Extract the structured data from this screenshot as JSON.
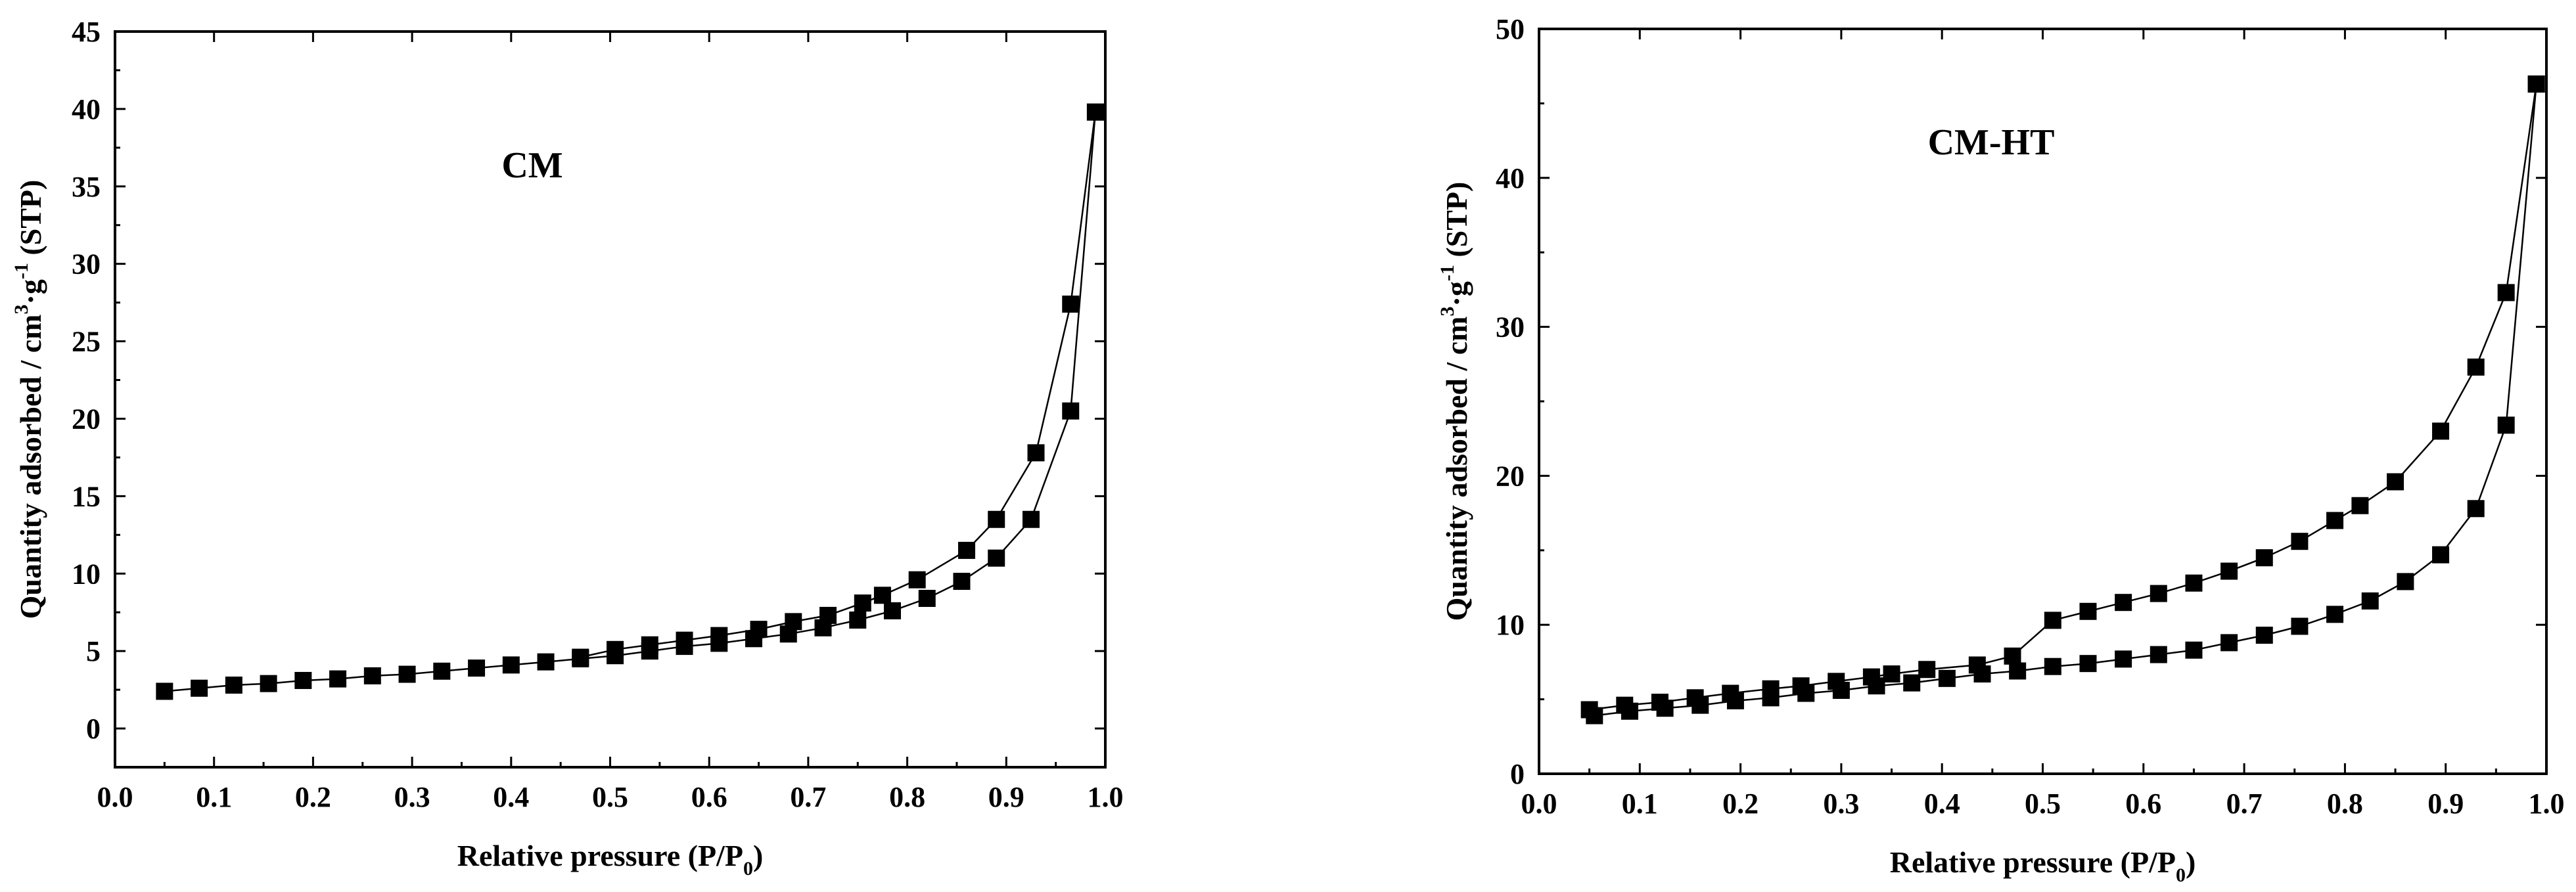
{
  "chart_data": [
    {
      "type": "line",
      "panel_label": "CM",
      "xlabel": "Relative pressure (P/P",
      "xlabel_sub": "0",
      "xlabel_suffix": ")",
      "ylabel_part1": "Quantity adsorbed / cm",
      "ylabel_sup1": "3",
      "ylabel_part2": "·g",
      "ylabel_sup2": "-1",
      "ylabel_part3": " (STP)",
      "xlim": [
        0.0,
        1.0
      ],
      "ylim": [
        -2.5,
        45
      ],
      "xticks": [
        0.0,
        0.1,
        0.2,
        0.3,
        0.4,
        0.5,
        0.6,
        0.7,
        0.8,
        0.9,
        1.0
      ],
      "xtick_labels": [
        "0.0",
        "0.1",
        "0.2",
        "0.3",
        "0.4",
        "0.5",
        "0.6",
        "0.7",
        "0.8",
        "0.9",
        "1.0"
      ],
      "yticks": [
        0,
        5,
        10,
        15,
        20,
        25,
        30,
        35,
        40,
        45
      ],
      "ytick_labels": [
        "0",
        "5",
        "10",
        "15",
        "20",
        "25",
        "30",
        "35",
        "40",
        "45"
      ],
      "marker": "square",
      "series": [
        {
          "x": [
            0.05,
            0.085,
            0.12,
            0.155,
            0.19,
            0.225,
            0.26,
            0.295,
            0.33,
            0.365,
            0.4,
            0.435,
            0.47,
            0.505,
            0.54,
            0.575,
            0.61,
            0.645,
            0.68,
            0.715,
            0.75,
            0.785,
            0.82,
            0.855,
            0.89,
            0.925,
            0.965,
            0.99
          ],
          "y": [
            2.4,
            2.6,
            2.8,
            2.9,
            3.1,
            3.2,
            3.4,
            3.5,
            3.7,
            3.9,
            4.1,
            4.3,
            4.5,
            4.7,
            5.0,
            5.3,
            5.5,
            5.8,
            6.1,
            6.5,
            7.0,
            7.6,
            8.4,
            9.5,
            11.0,
            13.5,
            20.5,
            39.8
          ]
        },
        {
          "x": [
            0.99,
            0.965,
            0.93,
            0.89,
            0.86,
            0.81,
            0.775,
            0.755,
            0.72,
            0.685,
            0.65,
            0.61,
            0.575,
            0.54,
            0.505,
            0.47
          ],
          "y": [
            39.8,
            27.4,
            17.8,
            13.5,
            11.5,
            9.6,
            8.6,
            8.1,
            7.3,
            6.9,
            6.4,
            6.0,
            5.7,
            5.4,
            5.1,
            4.6
          ]
        }
      ]
    },
    {
      "type": "line",
      "panel_label": "CM-HT",
      "xlabel": "Relative pressure (P/P",
      "xlabel_sub": "0",
      "xlabel_suffix": ")",
      "ylabel_part1": "Quantity adsorbed / cm",
      "ylabel_sup1": "3",
      "ylabel_part2": "·g",
      "ylabel_sup2": "-1",
      "ylabel_part3": " (STP)",
      "xlim": [
        0.0,
        1.0
      ],
      "ylim": [
        0,
        50
      ],
      "xticks": [
        0.0,
        0.1,
        0.2,
        0.3,
        0.4,
        0.5,
        0.6,
        0.7,
        0.8,
        0.9,
        1.0
      ],
      "xtick_labels": [
        "0.0",
        "0.1",
        "0.2",
        "0.3",
        "0.4",
        "0.5",
        "0.6",
        "0.7",
        "0.8",
        "0.9",
        "1.0"
      ],
      "yticks": [
        0,
        10,
        20,
        30,
        40,
        50
      ],
      "ytick_labels": [
        "0",
        "10",
        "20",
        "30",
        "40",
        "50"
      ],
      "marker": "square",
      "series": [
        {
          "x": [
            0.055,
            0.09,
            0.125,
            0.16,
            0.195,
            0.23,
            0.265,
            0.3,
            0.335,
            0.37,
            0.405,
            0.44,
            0.475,
            0.51,
            0.545,
            0.58,
            0.615,
            0.65,
            0.685,
            0.72,
            0.755,
            0.79,
            0.825,
            0.86,
            0.895,
            0.93,
            0.96,
            0.99
          ],
          "y": [
            3.9,
            4.2,
            4.4,
            4.6,
            4.9,
            5.1,
            5.4,
            5.6,
            5.9,
            6.1,
            6.4,
            6.7,
            6.9,
            7.2,
            7.4,
            7.7,
            8.0,
            8.3,
            8.8,
            9.3,
            9.9,
            10.7,
            11.6,
            12.9,
            14.7,
            17.8,
            23.4,
            46.3
          ]
        },
        {
          "x": [
            0.99,
            0.96,
            0.93,
            0.895,
            0.85,
            0.815,
            0.79,
            0.755,
            0.72,
            0.685,
            0.65,
            0.615,
            0.58,
            0.545,
            0.51,
            0.47,
            0.435,
            0.385,
            0.35,
            0.33,
            0.295,
            0.26,
            0.23,
            0.19,
            0.155,
            0.12,
            0.085,
            0.05
          ],
          "y": [
            46.3,
            32.3,
            27.3,
            23.0,
            19.6,
            18.0,
            17.0,
            15.6,
            14.5,
            13.6,
            12.8,
            12.1,
            11.5,
            10.9,
            10.3,
            7.9,
            7.3,
            7.0,
            6.7,
            6.5,
            6.2,
            5.9,
            5.7,
            5.4,
            5.1,
            4.8,
            4.6,
            4.3
          ]
        }
      ]
    }
  ]
}
